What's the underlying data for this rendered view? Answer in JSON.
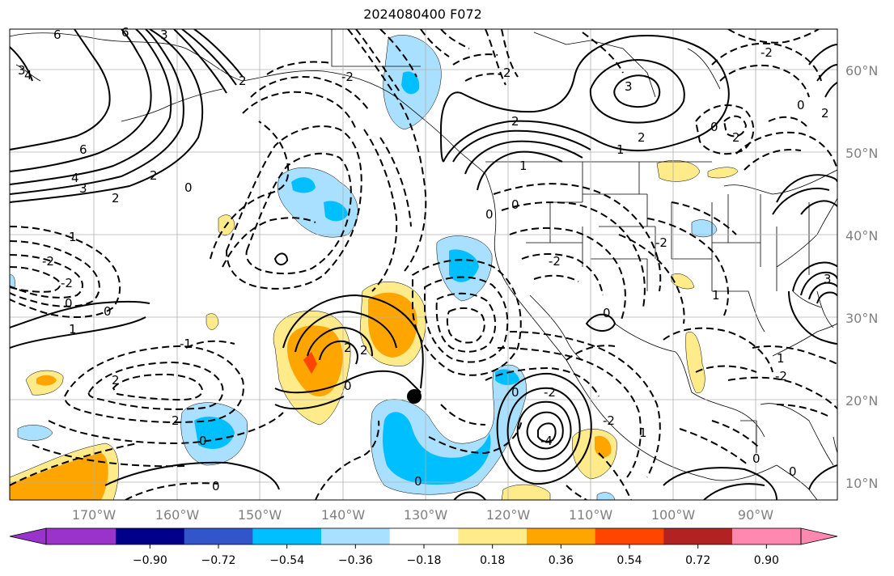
{
  "title": "2024080400 F072",
  "map": {
    "lon_range": [
      -180,
      -80
    ],
    "lat_range": [
      8,
      65
    ],
    "lat_labels": [
      "60°N",
      "50°N",
      "40°N",
      "30°N",
      "20°N",
      "10°N"
    ],
    "lat_values": [
      60,
      50,
      40,
      30,
      20,
      10
    ],
    "lon_labels": [
      "170°W",
      "160°W",
      "150°W",
      "140°W",
      "130°W",
      "120°W",
      "110°W",
      "100°W",
      "90°W"
    ],
    "lon_values": [
      -170,
      -160,
      -150,
      -140,
      -130,
      -120,
      -110,
      -100,
      -90
    ],
    "marker": {
      "lon": -130.2,
      "lat": 20.5
    }
  },
  "colorbar": {
    "colors": [
      "#9933cc",
      "#00008b",
      "#3355cc",
      "#00bfff",
      "#aae0ff",
      "#ffffff",
      "#ffeb8a",
      "#ffa500",
      "#ff4500",
      "#b22222",
      "#ff88b0"
    ],
    "tick_labels": [
      "−0.90",
      "−0.72",
      "−0.54",
      "−0.36",
      "−0.18",
      "0.18",
      "0.36",
      "0.54",
      "0.72",
      "0.90"
    ]
  },
  "contour_labels": [
    "6",
    "4",
    "3",
    "2",
    "0",
    "1",
    "-1",
    "-2",
    "-4",
    "3",
    "2",
    "2",
    "1",
    "0",
    "-2",
    "-1",
    "1",
    "-2",
    "-4",
    "2",
    "1",
    "0",
    "-1",
    "-2",
    "-3"
  ]
}
